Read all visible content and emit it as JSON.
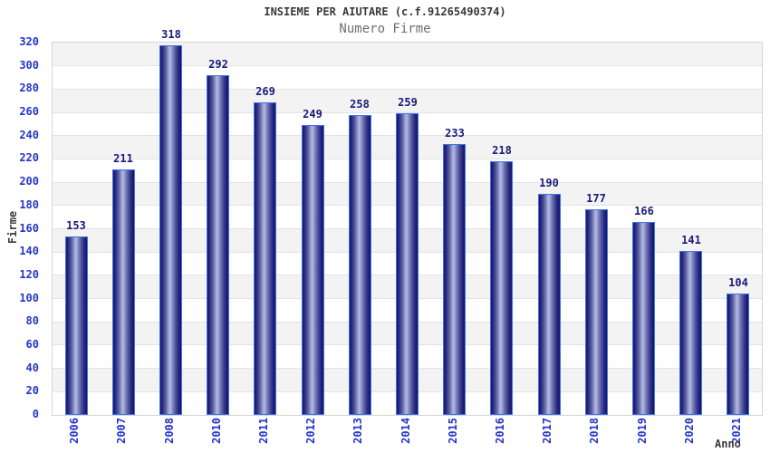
{
  "title": "INSIEME PER AIUTARE (c.f.91265490374)",
  "subtitle": "Numero Firme",
  "chart_data": {
    "type": "bar",
    "title": "INSIEME PER AIUTARE (c.f.91265490374)",
    "subtitle": "Numero Firme",
    "xlabel": "Anno",
    "ylabel": "Firme",
    "categories": [
      "2006",
      "2007",
      "2008",
      "2010",
      "2011",
      "2012",
      "2013",
      "2014",
      "2015",
      "2016",
      "2017",
      "2018",
      "2019",
      "2020",
      "2021"
    ],
    "values": [
      153,
      211,
      318,
      292,
      269,
      249,
      258,
      259,
      233,
      218,
      190,
      177,
      166,
      141,
      104
    ],
    "ylim": [
      0,
      320
    ],
    "ytick_step": 20,
    "legend": "none",
    "grid": "horizontal-bands-alternating",
    "colors": {
      "bar_border": "#3f74e8",
      "bar_dark": "#17176b",
      "bar_light": "#b4bade",
      "value_label": "#1a1a78",
      "tick_label": "#2533c8",
      "band_gray": "#f3f3f3",
      "band_white": "#ffffff",
      "plot_border": "#d6d6d6",
      "title_color": "#3a3a3a",
      "subtitle_color": "#6e6e6e"
    }
  }
}
